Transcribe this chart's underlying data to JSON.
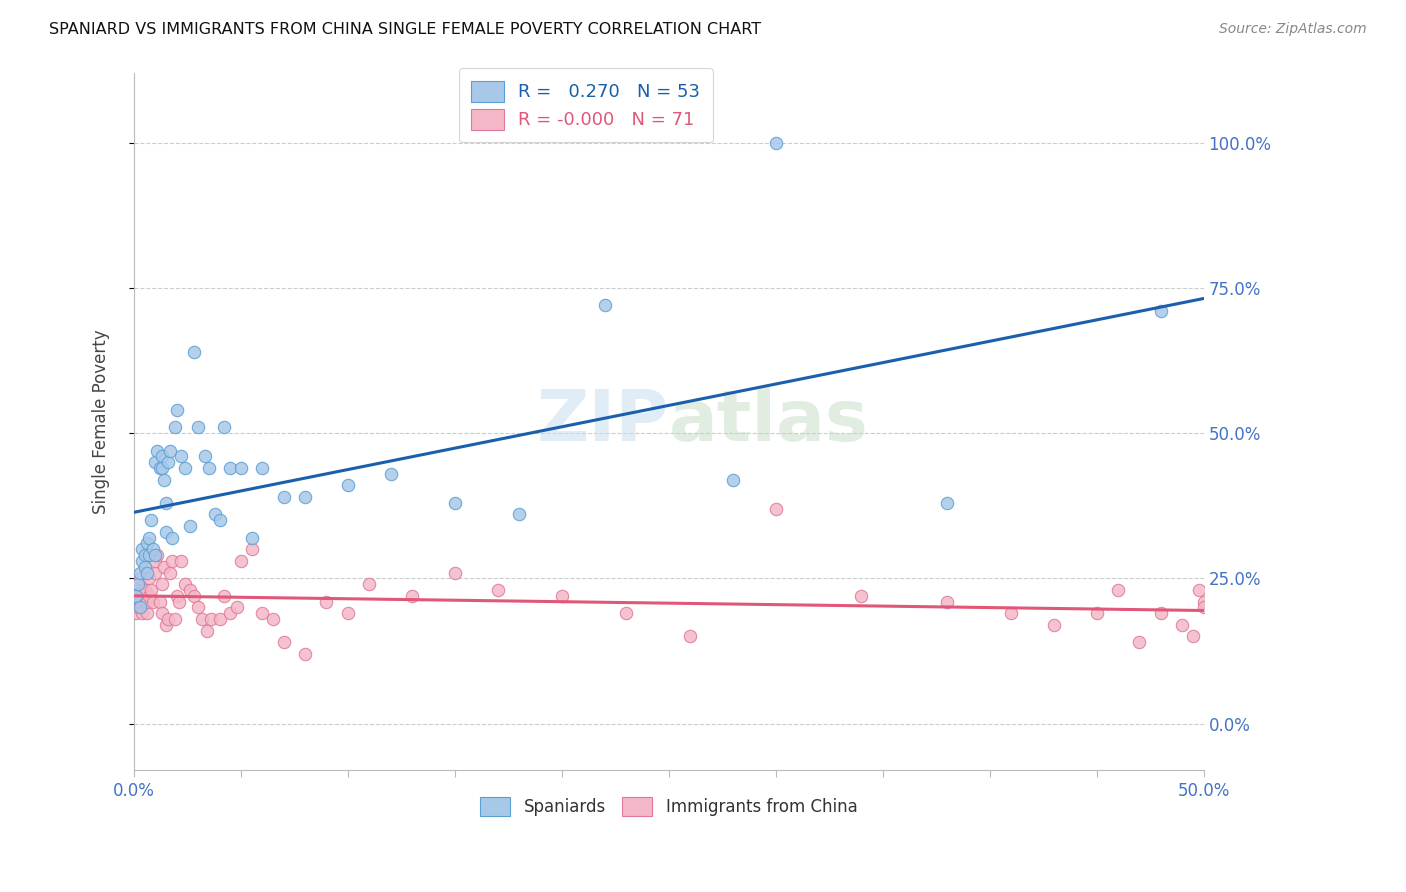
{
  "title": "SPANIARD VS IMMIGRANTS FROM CHINA SINGLE FEMALE POVERTY CORRELATION CHART",
  "source": "Source: ZipAtlas.com",
  "ylabel": "Single Female Poverty",
  "xlim": [
    0.0,
    0.5
  ],
  "ylim": [
    -0.08,
    1.12
  ],
  "yticks": [
    0.0,
    0.25,
    0.5,
    0.75,
    1.0
  ],
  "ytick_labels": [
    "0.0%",
    "25.0%",
    "50.0%",
    "75.0%",
    "100.0%"
  ],
  "xticks": [
    0.0,
    0.05,
    0.1,
    0.15,
    0.2,
    0.25,
    0.3,
    0.35,
    0.4,
    0.45,
    0.5
  ],
  "xtick_labels": [
    "0.0%",
    "",
    "",
    "",
    "",
    "",
    "",
    "",
    "",
    "",
    "50.0%"
  ],
  "color_blue": "#a8c8e8",
  "color_blue_edge": "#5a9fd4",
  "color_pink": "#f4b8c8",
  "color_pink_edge": "#e07898",
  "color_line_blue": "#1a5faa",
  "color_line_pink": "#e05878",
  "watermark_color": "#c8dff0",
  "spaniards_x": [
    0.001,
    0.002,
    0.003,
    0.003,
    0.004,
    0.004,
    0.005,
    0.005,
    0.006,
    0.006,
    0.007,
    0.007,
    0.008,
    0.009,
    0.01,
    0.01,
    0.011,
    0.012,
    0.013,
    0.013,
    0.014,
    0.015,
    0.015,
    0.016,
    0.017,
    0.018,
    0.019,
    0.02,
    0.022,
    0.024,
    0.026,
    0.028,
    0.03,
    0.033,
    0.035,
    0.038,
    0.04,
    0.042,
    0.045,
    0.05,
    0.055,
    0.06,
    0.07,
    0.08,
    0.1,
    0.12,
    0.15,
    0.18,
    0.22,
    0.28,
    0.3,
    0.38,
    0.48
  ],
  "spaniards_y": [
    0.22,
    0.24,
    0.26,
    0.2,
    0.28,
    0.3,
    0.27,
    0.29,
    0.31,
    0.26,
    0.29,
    0.32,
    0.35,
    0.3,
    0.29,
    0.45,
    0.47,
    0.44,
    0.44,
    0.46,
    0.42,
    0.38,
    0.33,
    0.45,
    0.47,
    0.32,
    0.51,
    0.54,
    0.46,
    0.44,
    0.34,
    0.64,
    0.51,
    0.46,
    0.44,
    0.36,
    0.35,
    0.51,
    0.44,
    0.44,
    0.32,
    0.44,
    0.39,
    0.39,
    0.41,
    0.43,
    0.38,
    0.36,
    0.72,
    0.42,
    1.0,
    0.38,
    0.71
  ],
  "china_x": [
    0.001,
    0.001,
    0.002,
    0.002,
    0.003,
    0.003,
    0.004,
    0.004,
    0.005,
    0.005,
    0.006,
    0.006,
    0.007,
    0.007,
    0.008,
    0.009,
    0.01,
    0.01,
    0.011,
    0.012,
    0.013,
    0.013,
    0.014,
    0.015,
    0.016,
    0.017,
    0.018,
    0.019,
    0.02,
    0.021,
    0.022,
    0.024,
    0.026,
    0.028,
    0.03,
    0.032,
    0.034,
    0.036,
    0.04,
    0.042,
    0.045,
    0.048,
    0.05,
    0.055,
    0.06,
    0.065,
    0.07,
    0.08,
    0.09,
    0.1,
    0.11,
    0.13,
    0.15,
    0.17,
    0.2,
    0.23,
    0.26,
    0.3,
    0.34,
    0.38,
    0.41,
    0.43,
    0.45,
    0.46,
    0.47,
    0.48,
    0.49,
    0.495,
    0.498,
    0.5,
    0.5
  ],
  "china_y": [
    0.21,
    0.19,
    0.23,
    0.2,
    0.25,
    0.21,
    0.23,
    0.19,
    0.21,
    0.23,
    0.19,
    0.21,
    0.22,
    0.25,
    0.23,
    0.21,
    0.26,
    0.28,
    0.29,
    0.21,
    0.19,
    0.24,
    0.27,
    0.17,
    0.18,
    0.26,
    0.28,
    0.18,
    0.22,
    0.21,
    0.28,
    0.24,
    0.23,
    0.22,
    0.2,
    0.18,
    0.16,
    0.18,
    0.18,
    0.22,
    0.19,
    0.2,
    0.28,
    0.3,
    0.19,
    0.18,
    0.14,
    0.12,
    0.21,
    0.19,
    0.24,
    0.22,
    0.26,
    0.23,
    0.22,
    0.19,
    0.15,
    0.37,
    0.22,
    0.21,
    0.19,
    0.17,
    0.19,
    0.23,
    0.14,
    0.19,
    0.17,
    0.15,
    0.23,
    0.21,
    0.2
  ]
}
